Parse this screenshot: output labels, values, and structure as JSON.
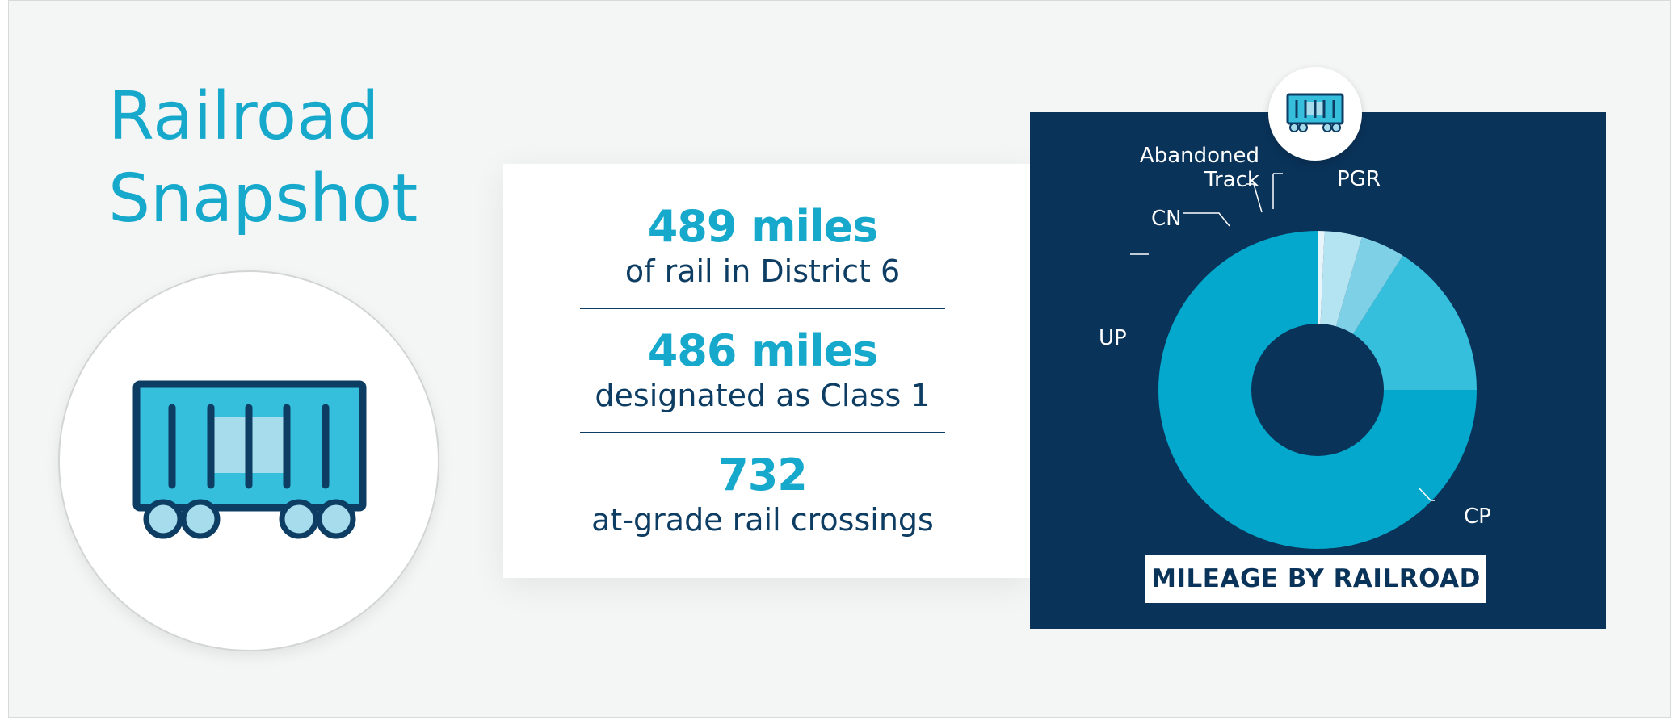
{
  "page": {
    "title_line1": "Railroad",
    "title_line2": "Snapshot"
  },
  "stats": [
    {
      "value": "489 miles",
      "description": "of rail in District 6"
    },
    {
      "value": "486 miles",
      "description": "designated as Class 1"
    },
    {
      "value": "732",
      "description": "at-grade rail crossings"
    }
  ],
  "colors": {
    "accent": "#17a9cc",
    "navy": "#0a335a",
    "text_navy": "#0e3d63",
    "background": "#f4f5f5"
  },
  "icons": [
    "rail-car-icon",
    "rail-car-badge-icon"
  ],
  "chart_data": {
    "type": "pie",
    "donut": true,
    "title": "MILEAGE BY RAILROAD",
    "labels": [
      "CP",
      "UP",
      "CN",
      "Abandoned Track",
      "PGR"
    ],
    "label_lines": {
      "Abandoned Track": [
        "Abandoned",
        "Track"
      ]
    },
    "values": [
      75,
      16,
      4.5,
      3.8,
      0.7
    ],
    "colors": [
      "#03a8cc",
      "#35bfdc",
      "#7dd0e6",
      "#b4e3f1",
      "#e7f4f9"
    ],
    "legend": "none"
  }
}
